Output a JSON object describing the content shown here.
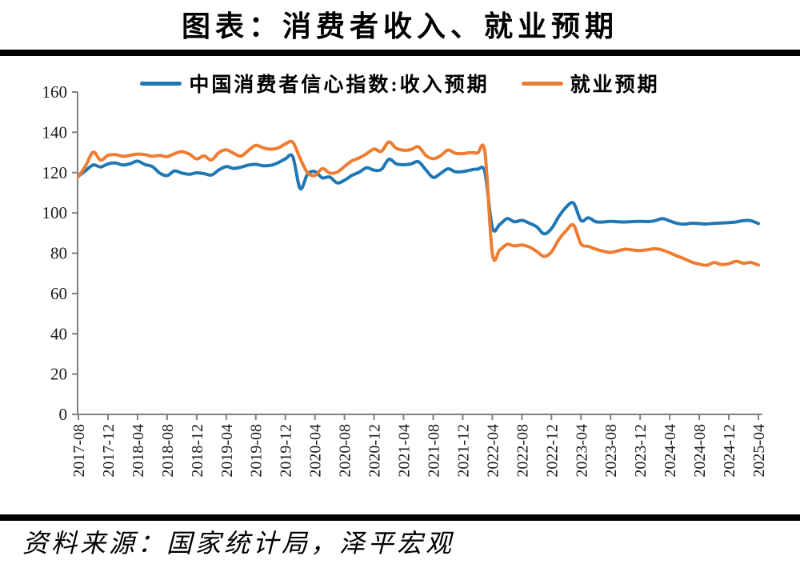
{
  "title": "图表：消费者收入、就业预期",
  "source": "资料来源：国家统计局，泽平宏观",
  "legend": [
    {
      "label": "中国消费者信心指数:收入预期",
      "color": "#1f77b4"
    },
    {
      "label": "就业预期",
      "color": "#ed7d31"
    }
  ],
  "chart_data": {
    "type": "line",
    "title": "图表：消费者收入、就业预期",
    "xlabel": "",
    "ylabel": "",
    "ylim": [
      0,
      160
    ],
    "y_ticks": [
      0,
      20,
      40,
      60,
      80,
      100,
      120,
      140,
      160
    ],
    "grid": false,
    "legend_position": "top",
    "axis_color": "#808080",
    "tick_label_color": "#1a1a1a",
    "x_range": {
      "start": "2017-08",
      "end": "2025-04",
      "interval": "monthly",
      "points": 93
    },
    "x_tick_labels": [
      "2017-08",
      "2017-12",
      "2018-04",
      "2018-08",
      "2018-12",
      "2019-04",
      "2019-08",
      "2019-12",
      "2020-04",
      "2020-08",
      "2020-12",
      "2021-04",
      "2021-08",
      "2021-12",
      "2022-04",
      "2022-08",
      "2022-12",
      "2023-04",
      "2023-08",
      "2023-12",
      "2024-04",
      "2024-08",
      "2024-12",
      "2025-04"
    ],
    "series": [
      {
        "name": "中国消费者信心指数:收入预期",
        "color": "#1f77b4",
        "values": [
          118.2,
          121.0,
          123.8,
          122.8,
          124.3,
          124.8,
          123.8,
          124.4,
          125.7,
          124.0,
          123.0,
          119.8,
          118.5,
          120.8,
          119.8,
          119.2,
          119.9,
          119.5,
          118.8,
          121.3,
          123.0,
          122.1,
          122.7,
          123.7,
          124.1,
          123.4,
          123.6,
          124.9,
          126.8,
          127.9,
          112.1,
          119.2,
          120.5,
          117.4,
          117.8,
          114.9,
          116.2,
          118.6,
          120.2,
          122.4,
          121.2,
          121.6,
          126.6,
          124.4,
          123.9,
          124.3,
          125.4,
          121.4,
          117.6,
          119.6,
          121.9,
          120.4,
          120.5,
          121.2,
          121.7,
          120.1,
          92.7,
          94.2,
          97.2,
          95.6,
          96.3,
          94.9,
          93.1,
          89.6,
          92.2,
          98.2,
          102.9,
          104.8,
          96.2,
          97.6,
          95.6,
          95.5,
          95.8,
          95.6,
          95.5,
          95.7,
          95.8,
          95.7,
          96.1,
          97.2,
          96.0,
          94.8,
          94.4,
          94.9,
          94.7,
          94.5,
          94.8,
          95.0,
          95.2,
          95.5,
          96.2,
          96.1,
          94.7
        ]
      },
      {
        "name": "就业预期",
        "color": "#ed7d31",
        "values": [
          118.0,
          123.5,
          130.2,
          126.2,
          128.6,
          128.9,
          128.1,
          128.6,
          129.2,
          128.9,
          128.1,
          128.5,
          127.9,
          129.4,
          130.4,
          129.2,
          126.8,
          128.3,
          126.3,
          129.9,
          131.3,
          129.6,
          128.2,
          131.0,
          133.5,
          132.3,
          131.6,
          132.2,
          134.2,
          135.1,
          127.0,
          120.0,
          118.6,
          122.0,
          119.8,
          120.2,
          123.0,
          125.8,
          127.3,
          129.4,
          131.7,
          130.6,
          135.2,
          132.1,
          131.1,
          131.4,
          132.8,
          128.6,
          126.9,
          128.4,
          131.2,
          129.6,
          129.4,
          129.9,
          129.7,
          130.1,
          79.8,
          81.6,
          84.4,
          83.6,
          84.1,
          83.1,
          80.9,
          78.4,
          80.6,
          86.8,
          91.2,
          93.9,
          84.6,
          83.4,
          82.0,
          81.0,
          80.4,
          81.2,
          82.0,
          81.6,
          81.3,
          81.7,
          82.2,
          81.6,
          80.2,
          78.6,
          77.2,
          75.6,
          74.6,
          74.0,
          75.4,
          74.4,
          74.8,
          76.0,
          75.0,
          75.4,
          74.1
        ]
      }
    ]
  }
}
